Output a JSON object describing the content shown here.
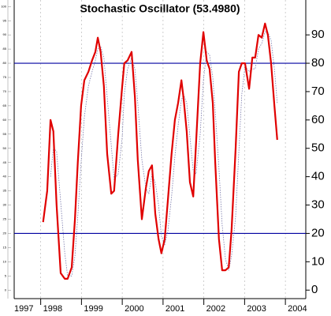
{
  "chart_data": {
    "type": "line",
    "title": "Stochastic Oscillator (53.4980)",
    "x": [
      1998.06,
      1998.16,
      1998.24,
      1998.31,
      1998.39,
      1998.49,
      1998.59,
      1998.66,
      1998.76,
      1998.84,
      1998.91,
      1998.99,
      1999.07,
      1999.17,
      1999.26,
      1999.34,
      1999.4,
      1999.47,
      1999.55,
      1999.63,
      1999.73,
      1999.8,
      1999.9,
      2000.0,
      2000.05,
      2000.13,
      2000.23,
      2000.31,
      2000.38,
      2000.48,
      2000.58,
      2000.65,
      2000.73,
      2000.81,
      2000.89,
      2000.96,
      2001.04,
      2001.12,
      2001.21,
      2001.29,
      2001.37,
      2001.45,
      2001.5,
      2001.58,
      2001.66,
      2001.74,
      2001.81,
      2001.91,
      2001.99,
      2002.07,
      2002.14,
      2002.22,
      2002.28,
      2002.37,
      2002.45,
      2002.53,
      2002.61,
      2002.68,
      2002.78,
      2002.86,
      2002.93,
      2003.01,
      2003.11,
      2003.19,
      2003.26,
      2003.34,
      2003.42,
      2003.5,
      2003.57,
      2003.65,
      2003.73,
      2003.8
    ],
    "series": [
      {
        "color": "#e00000",
        "values": [
          24,
          35,
          60,
          56,
          30,
          6,
          4,
          4,
          8,
          25,
          45,
          65,
          74,
          77,
          81,
          84,
          89,
          84,
          72,
          48,
          34,
          35,
          55,
          72,
          80,
          81,
          84,
          68,
          46,
          25,
          36,
          42,
          44,
          27,
          18,
          13,
          18,
          32,
          48,
          60,
          66,
          74,
          68,
          56,
          38,
          33,
          52,
          80,
          91,
          81,
          78,
          66,
          45,
          18,
          7,
          7,
          8,
          21,
          50,
          77,
          80,
          80,
          71,
          82,
          82,
          90,
          89,
          94,
          90,
          80,
          65,
          53
        ]
      },
      {
        "color": "#7777aa",
        "dashed": true,
        "values": [
          null,
          null,
          40,
          50,
          49,
          31,
          13,
          5,
          5,
          12,
          26,
          45,
          61,
          72,
          77,
          81,
          85,
          86,
          82,
          68,
          51,
          39,
          41,
          54,
          69,
          78,
          82,
          78,
          66,
          46,
          36,
          34,
          41,
          38,
          30,
          19,
          16,
          21,
          33,
          47,
          58,
          67,
          69,
          66,
          54,
          42,
          41,
          55,
          74,
          84,
          83,
          75,
          63,
          43,
          23,
          11,
          7,
          12,
          26,
          49,
          69,
          79,
          77,
          78,
          78,
          85,
          87,
          91,
          91,
          88,
          78,
          66
        ]
      }
    ],
    "reference_lines": {
      "color": "#0000a0",
      "values": [
        80,
        20
      ]
    },
    "xlim": [
      1997.35,
      2004.5
    ],
    "xticks": [
      1997,
      1998,
      1999,
      2000,
      2001,
      2002,
      2003,
      2004
    ],
    "ylim": [
      -3,
      102.3
    ],
    "yticks": [
      0,
      10,
      20,
      30,
      40,
      50,
      60,
      70,
      80,
      90
    ],
    "left_yticks": [
      0,
      5,
      10,
      15,
      20,
      25,
      30,
      35,
      40,
      45,
      50,
      55,
      60,
      65,
      70,
      75,
      80,
      85,
      90,
      95,
      100
    ],
    "grid": true
  }
}
